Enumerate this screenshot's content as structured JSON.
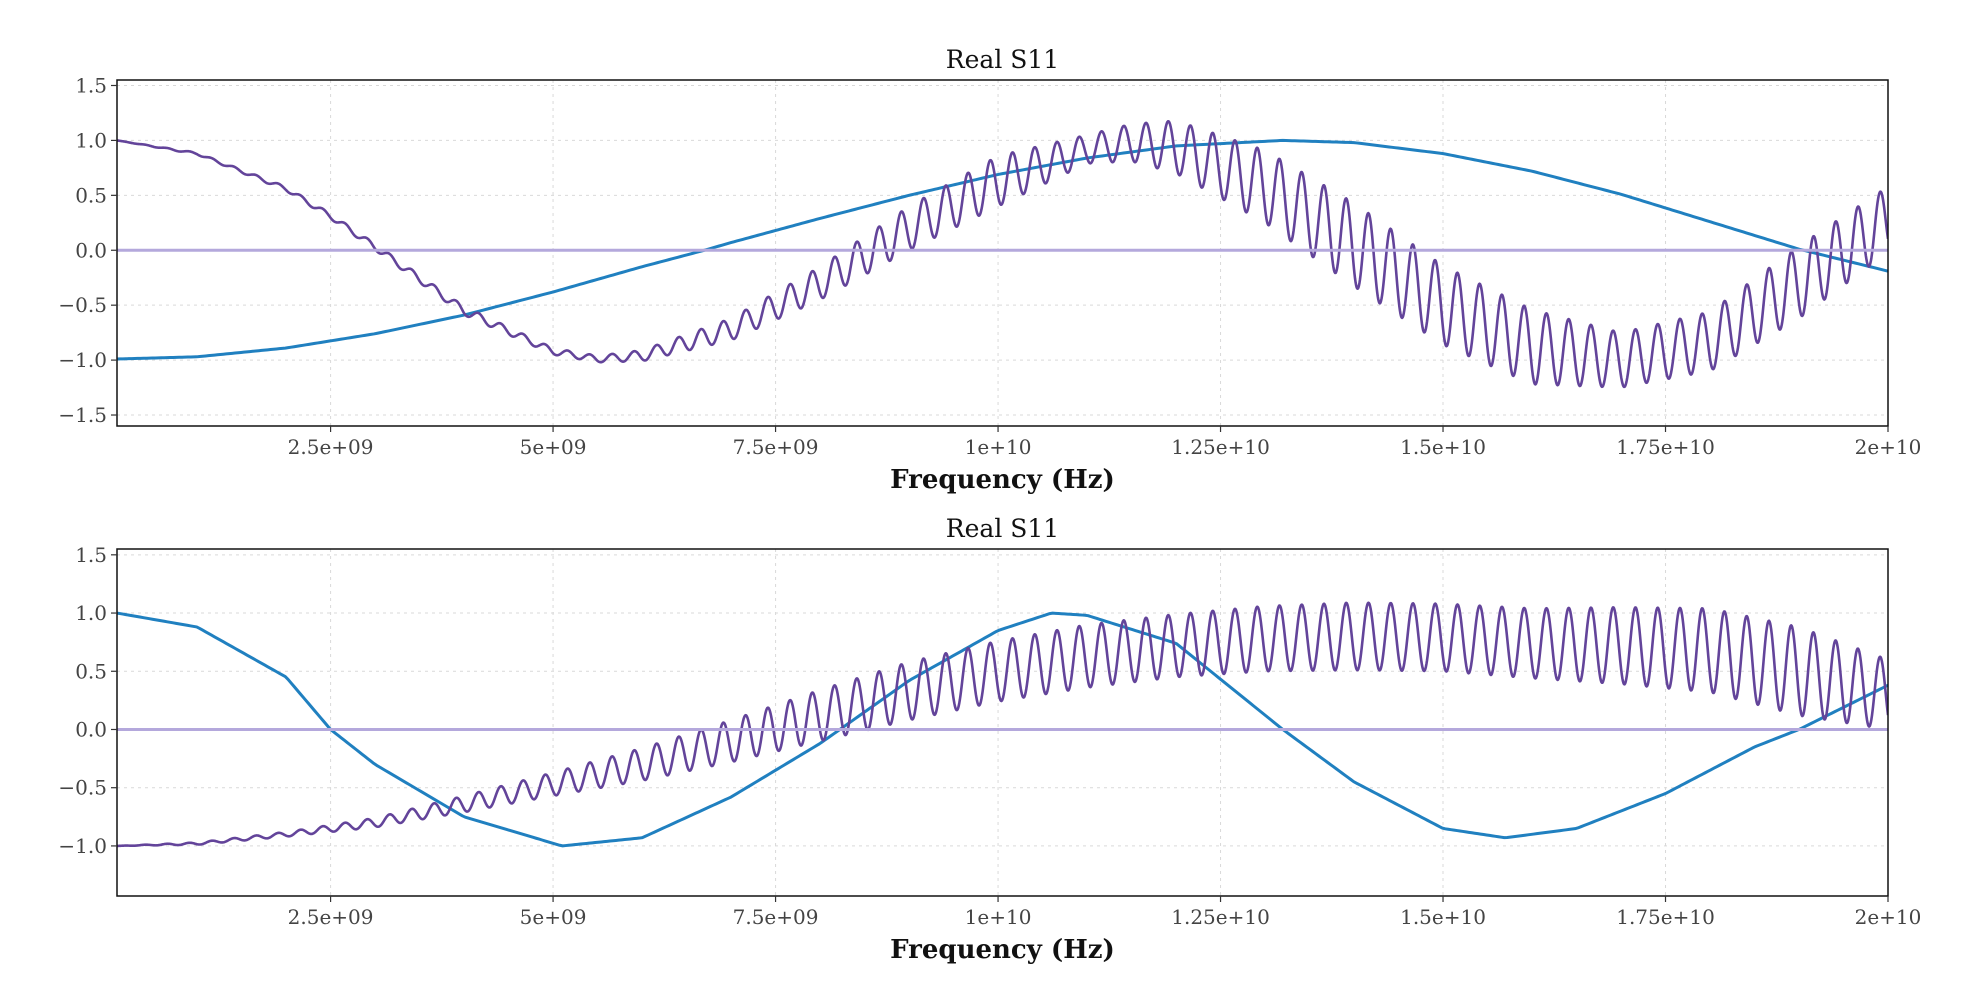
{
  "chart_data": [
    {
      "type": "line",
      "title": "Real S11",
      "xlabel": "Frequency (Hz)",
      "ylabel": "",
      "xlim": [
        100000000,
        20000000000
      ],
      "ylim": [
        -1.6,
        1.55
      ],
      "grid": true,
      "x_ticks": [
        2500000000,
        5000000000,
        7500000000,
        10000000000,
        12500000000,
        15000000000,
        17500000000,
        20000000000
      ],
      "x_tick_labels": [
        "2.5e+09",
        "5e+09",
        "7.5e+09",
        "1e+10",
        "1.25e+10",
        "1.5e+10",
        "1.75e+10",
        "2e+10"
      ],
      "y_ticks": [
        -1.5,
        -1.0,
        -0.5,
        0.0,
        0.5,
        1.0,
        1.5
      ],
      "y_tick_labels": [
        "−1.5",
        "−1.0",
        "−0.5",
        "0.0",
        "0.5",
        "1.0",
        "1.5"
      ],
      "series": [
        {
          "color": "#2080c0",
          "x": [
            100000000,
            1000000000,
            2000000000,
            3000000000,
            4000000000,
            5000000000,
            6000000000,
            6700000000,
            7000000000,
            8000000000,
            9000000000,
            10000000000,
            11000000000,
            12000000000,
            13200000000,
            14000000000,
            15000000000,
            16000000000,
            17000000000,
            18000000000,
            19000000000,
            20000000000
          ],
          "y": [
            -0.99,
            -0.97,
            -0.89,
            -0.76,
            -0.59,
            -0.38,
            -0.15,
            0.0,
            0.07,
            0.29,
            0.5,
            0.69,
            0.84,
            0.95,
            1.0,
            0.98,
            0.88,
            0.72,
            0.51,
            0.26,
            0.01,
            -0.19
          ]
        },
        {
          "color": "#63449a",
          "x": [
            100000000,
            1000000000,
            2000000000,
            2500000000,
            3000000000,
            4000000000,
            5000000000,
            5500000000,
            6000000000,
            7000000000,
            8000000000,
            9000000000,
            10000000000,
            11000000000,
            11500000000,
            12000000000,
            13000000000,
            14000000000,
            15000000000,
            16000000000,
            17000000000,
            18000000000,
            19000000000,
            20000000000
          ],
          "y": [
            1.0,
            0.88,
            0.56,
            0.31,
            0.03,
            -0.55,
            -0.92,
            -0.99,
            -0.96,
            -0.72,
            -0.3,
            0.2,
            0.63,
            0.92,
            0.98,
            0.94,
            0.58,
            0.05,
            -0.5,
            -0.88,
            -1.0,
            -0.83,
            -0.29,
            0.28
          ],
          "oscillation_amplitude": [
            0.0,
            0.01,
            0.02,
            0.025,
            0.03,
            0.04,
            0.03,
            0.03,
            0.05,
            0.1,
            0.15,
            0.2,
            0.23,
            0.13,
            0.17,
            0.24,
            0.33,
            0.38,
            0.36,
            0.34,
            0.25,
            0.27,
            0.33,
            0.3
          ],
          "oscillation_period_hz": 250000000
        },
        {
          "color": "#b4a8dc",
          "x": [
            100000000,
            20000000000
          ],
          "y": [
            0.0,
            0.0
          ]
        }
      ]
    },
    {
      "type": "line",
      "title": "Real S11",
      "xlabel": "Frequency (Hz)",
      "ylabel": "",
      "xlim": [
        100000000,
        20000000000
      ],
      "ylim": [
        -1.43,
        1.55
      ],
      "grid": true,
      "x_ticks": [
        2500000000,
        5000000000,
        7500000000,
        10000000000,
        12500000000,
        15000000000,
        17500000000,
        20000000000
      ],
      "x_tick_labels": [
        "2.5e+09",
        "5e+09",
        "7.5e+09",
        "1e+10",
        "1.25e+10",
        "1.5e+10",
        "1.75e+10",
        "2e+10"
      ],
      "y_ticks": [
        -1.0,
        -0.5,
        0.0,
        0.5,
        1.0,
        1.5
      ],
      "y_tick_labels": [
        "−1.0",
        "−0.5",
        "0.0",
        "0.5",
        "1.0",
        "1.5"
      ],
      "series": [
        {
          "color": "#2080c0",
          "x": [
            100000000,
            1000000000,
            2000000000,
            2500000000,
            3000000000,
            4000000000,
            5100000000,
            6000000000,
            7000000000,
            8000000000,
            9000000000,
            10000000000,
            10600000000,
            11000000000,
            12000000000,
            13200000000,
            14000000000,
            15000000000,
            15700000000,
            16500000000,
            17500000000,
            18500000000,
            19000000000,
            20000000000
          ],
          "y": [
            1.0,
            0.88,
            0.45,
            0.0,
            -0.3,
            -0.75,
            -1.0,
            -0.93,
            -0.58,
            -0.12,
            0.42,
            0.85,
            1.0,
            0.98,
            0.74,
            0.0,
            -0.45,
            -0.85,
            -0.93,
            -0.85,
            -0.55,
            -0.15,
            0.0,
            0.38
          ]
        },
        {
          "color": "#63449a",
          "x": [
            100000000,
            1000000000,
            2000000000,
            3000000000,
            4000000000,
            5000000000,
            6000000000,
            7000000000,
            8000000000,
            9000000000,
            10000000000,
            11000000000,
            12000000000,
            13000000000,
            14000000000,
            15000000000,
            16000000000,
            17000000000,
            18000000000,
            19000000000,
            20000000000
          ],
          "y": [
            -1.0,
            -0.98,
            -0.9,
            -0.8,
            -0.64,
            -0.47,
            -0.3,
            -0.1,
            0.12,
            0.33,
            0.5,
            0.63,
            0.72,
            0.78,
            0.8,
            0.79,
            0.74,
            0.72,
            0.68,
            0.5,
            0.3
          ],
          "oscillation_amplitude": [
            0.0,
            0.01,
            0.02,
            0.04,
            0.07,
            0.1,
            0.14,
            0.18,
            0.22,
            0.25,
            0.26,
            0.27,
            0.27,
            0.28,
            0.29,
            0.29,
            0.3,
            0.33,
            0.36,
            0.38,
            0.3
          ],
          "oscillation_period_hz": 250000000
        },
        {
          "color": "#b4a8dc",
          "x": [
            100000000,
            20000000000
          ],
          "y": [
            0.0,
            0.0
          ]
        }
      ]
    }
  ]
}
